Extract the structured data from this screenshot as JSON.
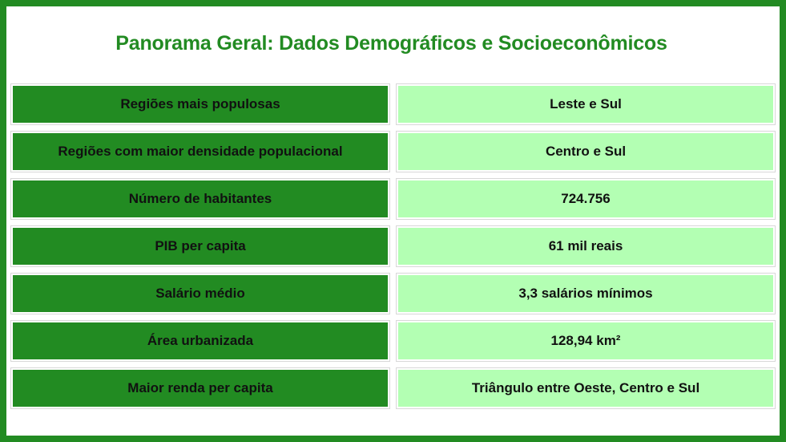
{
  "title": "Panorama Geral: Dados Demográficos e Socioeconômicos",
  "colors": {
    "border": "#228b22",
    "label_bg": "#228b22",
    "value_bg": "#b3ffb3",
    "title": "#228b22"
  },
  "rows": [
    {
      "label": "Regiões mais populosas",
      "value": "Leste e Sul"
    },
    {
      "label": "Regiões com maior densidade populacional",
      "value": "Centro e Sul"
    },
    {
      "label": "Número de habitantes",
      "value": "724.756"
    },
    {
      "label": "PIB per capita",
      "value": "61 mil reais"
    },
    {
      "label": "Salário médio",
      "value": "3,3 salários mínimos"
    },
    {
      "label": "Área urbanizada",
      "value": "128,94 km²"
    },
    {
      "label": "Maior renda per capita",
      "value": "Triângulo entre Oeste, Centro e Sul"
    }
  ]
}
